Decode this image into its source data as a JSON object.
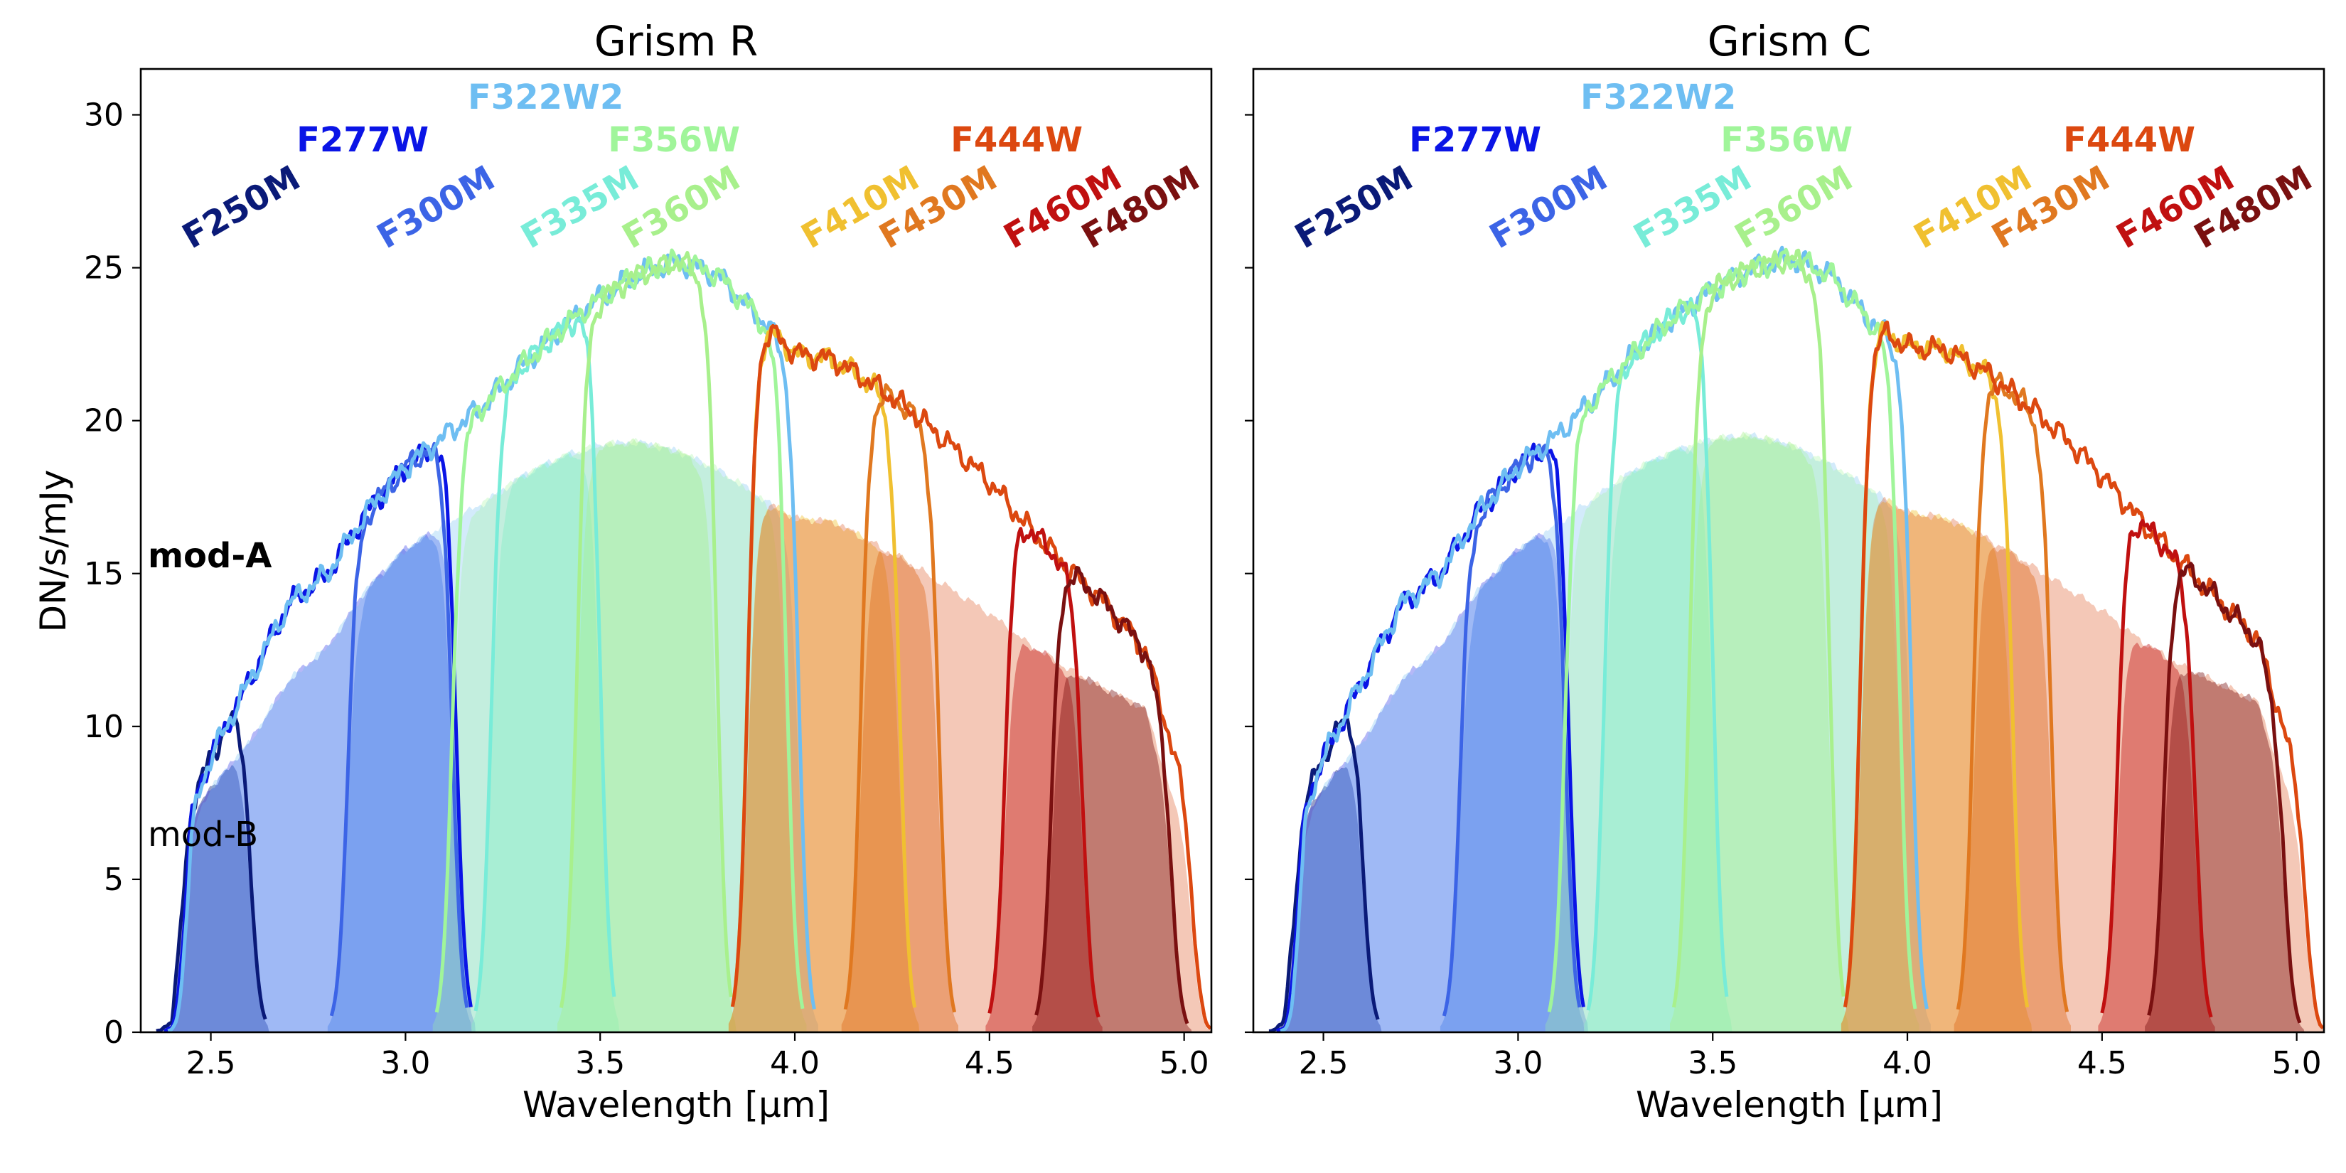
{
  "figure": {
    "y_axis_label": "DN/s/mJy",
    "mod_a_label": "mod-A",
    "mod_b_label": "mod-B"
  },
  "chart_data": [
    {
      "type": "area",
      "title": "Grism R",
      "xlabel": "Wavelength [μm]",
      "ylabel": "DN/s/mJy",
      "xlim": [
        2.32,
        5.07
      ],
      "ylim": [
        0,
        31.5
      ],
      "xticks": [
        2.5,
        3.0,
        3.5,
        4.0,
        4.5,
        5.0
      ],
      "xtick_labels": [
        "2.5",
        "3.0",
        "3.5",
        "4.0",
        "4.5",
        "5.0"
      ],
      "yticks": [
        0,
        5,
        10,
        15,
        20,
        25,
        30
      ],
      "ytick_labels": [
        "0",
        "5",
        "10",
        "15",
        "20",
        "25",
        "30"
      ],
      "legend": "none",
      "envelope_modA": {
        "x": [
          2.4,
          2.45,
          2.5,
          2.6,
          2.7,
          2.8,
          2.9,
          3.0,
          3.1,
          3.2,
          3.3,
          3.4,
          3.5,
          3.6,
          3.7,
          3.8,
          3.9,
          4.0,
          4.1,
          4.2,
          4.3,
          4.4,
          4.5,
          4.6,
          4.7,
          4.8,
          4.9,
          5.0,
          5.06
        ],
        "y": [
          1.0,
          7.5,
          9.0,
          11.5,
          14.0,
          15.0,
          17.0,
          18.5,
          19.5,
          20.5,
          21.8,
          23.0,
          24.0,
          24.8,
          25.2,
          24.8,
          23.5,
          22.2,
          22.0,
          21.2,
          20.3,
          19.2,
          18.0,
          16.5,
          15.2,
          14.0,
          12.5,
          8.0,
          3.0
        ]
      },
      "envelope_modB": {
        "x": [
          2.4,
          2.45,
          2.5,
          2.6,
          2.7,
          2.8,
          2.9,
          3.0,
          3.1,
          3.2,
          3.3,
          3.4,
          3.5,
          3.6,
          3.7,
          3.8,
          3.9,
          4.0,
          4.1,
          4.2,
          4.3,
          4.4,
          4.5,
          4.6,
          4.7,
          4.8,
          4.9,
          5.0,
          5.06
        ],
        "y": [
          0.8,
          7.0,
          8.0,
          9.5,
          11.5,
          12.6,
          14.5,
          15.8,
          16.6,
          17.3,
          18.2,
          18.8,
          19.2,
          19.3,
          19.0,
          18.4,
          17.6,
          16.8,
          16.7,
          16.0,
          15.3,
          14.5,
          13.7,
          12.7,
          11.9,
          11.2,
          10.6,
          6.5,
          1.5
        ]
      },
      "filters": [
        {
          "name": "F250M",
          "label": "F250M",
          "color": "#0a1a78",
          "cut_on": 2.4,
          "cut_off": 2.6,
          "label_x": 2.45,
          "label_y": 25.6,
          "label_rot": -30
        },
        {
          "name": "F277W",
          "label": "F277W",
          "color": "#0a14e6",
          "cut_on": 2.42,
          "cut_off": 3.13,
          "label_x": 2.72,
          "label_y": 28.8,
          "label_rot": 0
        },
        {
          "name": "F300M",
          "label": "F300M",
          "color": "#3c64e6",
          "cut_on": 2.85,
          "cut_off": 3.12,
          "label_x": 2.95,
          "label_y": 25.6,
          "label_rot": -30
        },
        {
          "name": "F322W2",
          "label": "F322W2",
          "color": "#6ebef2",
          "cut_on": 2.43,
          "cut_off": 4.01,
          "label_x": 3.16,
          "label_y": 30.2,
          "label_rot": 0
        },
        {
          "name": "F335M",
          "label": "F335M",
          "color": "#78ecd8",
          "cut_on": 3.22,
          "cut_off": 3.5,
          "label_x": 3.32,
          "label_y": 25.6,
          "label_rot": -30
        },
        {
          "name": "F356W",
          "label": "F356W",
          "color": "#a0f59a",
          "cut_on": 3.12,
          "cut_off": 3.98,
          "label_x": 3.52,
          "label_y": 28.8,
          "label_rot": 0
        },
        {
          "name": "F360M",
          "label": "F360M",
          "color": "#a8f08c",
          "cut_on": 3.44,
          "cut_off": 3.8,
          "label_x": 3.58,
          "label_y": 25.6,
          "label_rot": -30
        },
        {
          "name": "F410M",
          "label": "F410M",
          "color": "#f0c030",
          "cut_on": 3.88,
          "cut_off": 4.27,
          "label_x": 4.04,
          "label_y": 25.6,
          "label_rot": -30
        },
        {
          "name": "F430M",
          "label": "F430M",
          "color": "#e07820",
          "cut_on": 4.17,
          "cut_off": 4.37,
          "label_x": 4.24,
          "label_y": 25.6,
          "label_rot": -30
        },
        {
          "name": "F444W",
          "label": "F444W",
          "color": "#dc4810",
          "cut_on": 3.88,
          "cut_off": 5.03,
          "label_x": 4.4,
          "label_y": 28.8,
          "label_rot": 0
        },
        {
          "name": "F460M",
          "label": "F460M",
          "color": "#c01010",
          "cut_on": 4.54,
          "cut_off": 4.74,
          "label_x": 4.56,
          "label_y": 25.6,
          "label_rot": -30
        },
        {
          "name": "F480M",
          "label": "F480M",
          "color": "#7a1010",
          "cut_on": 4.66,
          "cut_off": 4.97,
          "label_x": 4.76,
          "label_y": 25.6,
          "label_rot": -30
        }
      ]
    },
    {
      "type": "area",
      "title": "Grism C",
      "xlabel": "Wavelength [μm]",
      "ylabel": "",
      "xlim": [
        2.32,
        5.07
      ],
      "ylim": [
        0,
        31.5
      ],
      "xticks": [
        2.5,
        3.0,
        3.5,
        4.0,
        4.5,
        5.0
      ],
      "xtick_labels": [
        "2.5",
        "3.0",
        "3.5",
        "4.0",
        "4.5",
        "5.0"
      ],
      "yticks": [
        0,
        5,
        10,
        15,
        20,
        25,
        30
      ],
      "ytick_labels": [],
      "legend": "none",
      "envelope_modA": {
        "x": [
          2.4,
          2.45,
          2.5,
          2.6,
          2.7,
          2.8,
          2.9,
          3.0,
          3.1,
          3.2,
          3.3,
          3.4,
          3.5,
          3.6,
          3.7,
          3.8,
          3.9,
          4.0,
          4.1,
          4.2,
          4.3,
          4.4,
          4.5,
          4.6,
          4.7,
          4.8,
          4.9,
          5.0,
          5.06
        ],
        "y": [
          1.0,
          7.5,
          9.0,
          11.5,
          14.0,
          15.0,
          17.0,
          18.5,
          19.5,
          20.8,
          22.2,
          23.4,
          24.3,
          25.0,
          25.3,
          24.8,
          23.3,
          22.4,
          22.3,
          21.6,
          20.6,
          19.5,
          18.2,
          16.7,
          15.4,
          14.1,
          12.8,
          8.5,
          3.5
        ]
      },
      "envelope_modB": {
        "x": [
          2.4,
          2.45,
          2.5,
          2.6,
          2.7,
          2.8,
          2.9,
          3.0,
          3.1,
          3.2,
          3.3,
          3.4,
          3.5,
          3.6,
          3.7,
          3.8,
          3.9,
          4.0,
          4.1,
          4.2,
          4.3,
          4.4,
          4.5,
          4.6,
          4.7,
          4.8,
          4.9,
          5.0,
          5.06
        ],
        "y": [
          0.8,
          7.0,
          8.0,
          9.5,
          11.5,
          12.6,
          14.5,
          15.8,
          16.6,
          17.5,
          18.4,
          19.0,
          19.4,
          19.5,
          19.2,
          18.6,
          17.8,
          17.0,
          16.8,
          16.2,
          15.4,
          14.6,
          13.8,
          12.8,
          12.0,
          11.4,
          10.8,
          7.0,
          2.0
        ]
      },
      "filters": [
        {
          "name": "F250M",
          "label": "F250M",
          "color": "#0a1a78",
          "cut_on": 2.4,
          "cut_off": 2.6,
          "label_x": 2.45,
          "label_y": 25.6,
          "label_rot": -30
        },
        {
          "name": "F277W",
          "label": "F277W",
          "color": "#0a14e6",
          "cut_on": 2.42,
          "cut_off": 3.13,
          "label_x": 2.72,
          "label_y": 28.8,
          "label_rot": 0
        },
        {
          "name": "F300M",
          "label": "F300M",
          "color": "#3c64e6",
          "cut_on": 2.85,
          "cut_off": 3.12,
          "label_x": 2.95,
          "label_y": 25.6,
          "label_rot": -30
        },
        {
          "name": "F322W2",
          "label": "F322W2",
          "color": "#6ebef2",
          "cut_on": 2.43,
          "cut_off": 4.01,
          "label_x": 3.16,
          "label_y": 30.2,
          "label_rot": 0
        },
        {
          "name": "F335M",
          "label": "F335M",
          "color": "#78ecd8",
          "cut_on": 3.22,
          "cut_off": 3.5,
          "label_x": 3.32,
          "label_y": 25.6,
          "label_rot": -30
        },
        {
          "name": "F356W",
          "label": "F356W",
          "color": "#a0f59a",
          "cut_on": 3.12,
          "cut_off": 3.98,
          "label_x": 3.52,
          "label_y": 28.8,
          "label_rot": 0
        },
        {
          "name": "F360M",
          "label": "F360M",
          "color": "#a8f08c",
          "cut_on": 3.44,
          "cut_off": 3.8,
          "label_x": 3.58,
          "label_y": 25.6,
          "label_rot": -30
        },
        {
          "name": "F410M",
          "label": "F410M",
          "color": "#f0c030",
          "cut_on": 3.88,
          "cut_off": 4.27,
          "label_x": 4.04,
          "label_y": 25.6,
          "label_rot": -30
        },
        {
          "name": "F430M",
          "label": "F430M",
          "color": "#e07820",
          "cut_on": 4.17,
          "cut_off": 4.37,
          "label_x": 4.24,
          "label_y": 25.6,
          "label_rot": -30
        },
        {
          "name": "F444W",
          "label": "F444W",
          "color": "#dc4810",
          "cut_on": 3.88,
          "cut_off": 5.03,
          "label_x": 4.4,
          "label_y": 28.8,
          "label_rot": 0
        },
        {
          "name": "F460M",
          "label": "F460M",
          "color": "#c01010",
          "cut_on": 4.54,
          "cut_off": 4.74,
          "label_x": 4.56,
          "label_y": 25.6,
          "label_rot": -30
        },
        {
          "name": "F480M",
          "label": "F480M",
          "color": "#7a1010",
          "cut_on": 4.66,
          "cut_off": 4.97,
          "label_x": 4.76,
          "label_y": 25.6,
          "label_rot": -30
        }
      ]
    }
  ]
}
